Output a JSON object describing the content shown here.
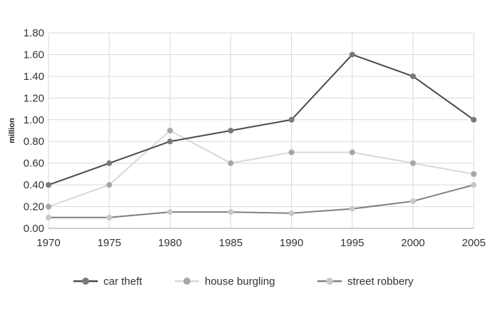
{
  "chart_data": {
    "type": "line",
    "title": "",
    "xlabel": "",
    "ylabel": "million",
    "x": [
      "1970",
      "1975",
      "1980",
      "1985",
      "1990",
      "1995",
      "2000",
      "2005"
    ],
    "ylim": [
      0,
      1.8
    ],
    "yticks": [
      "0.00",
      "0.20",
      "0.40",
      "0.60",
      "0.80",
      "1.00",
      "1.20",
      "1.40",
      "1.60",
      "1.80"
    ],
    "grid": true,
    "legend_position": "bottom",
    "series": [
      {
        "name": "car theft",
        "values": [
          0.4,
          0.6,
          0.8,
          0.9,
          1.0,
          1.6,
          1.4,
          1.0
        ],
        "line_color": "#4a4a4a",
        "marker_color": "#7a7a7a"
      },
      {
        "name": "house burgling",
        "values": [
          0.2,
          0.4,
          0.9,
          0.6,
          0.7,
          0.7,
          0.6,
          0.5
        ],
        "line_color": "#d9d9d9",
        "marker_color": "#a6a6a6"
      },
      {
        "name": "street robbery",
        "values": [
          0.1,
          0.1,
          0.15,
          0.15,
          0.14,
          0.18,
          0.25,
          0.4
        ],
        "line_color": "#7f7f7f",
        "marker_color": "#c8c8c8"
      }
    ]
  }
}
